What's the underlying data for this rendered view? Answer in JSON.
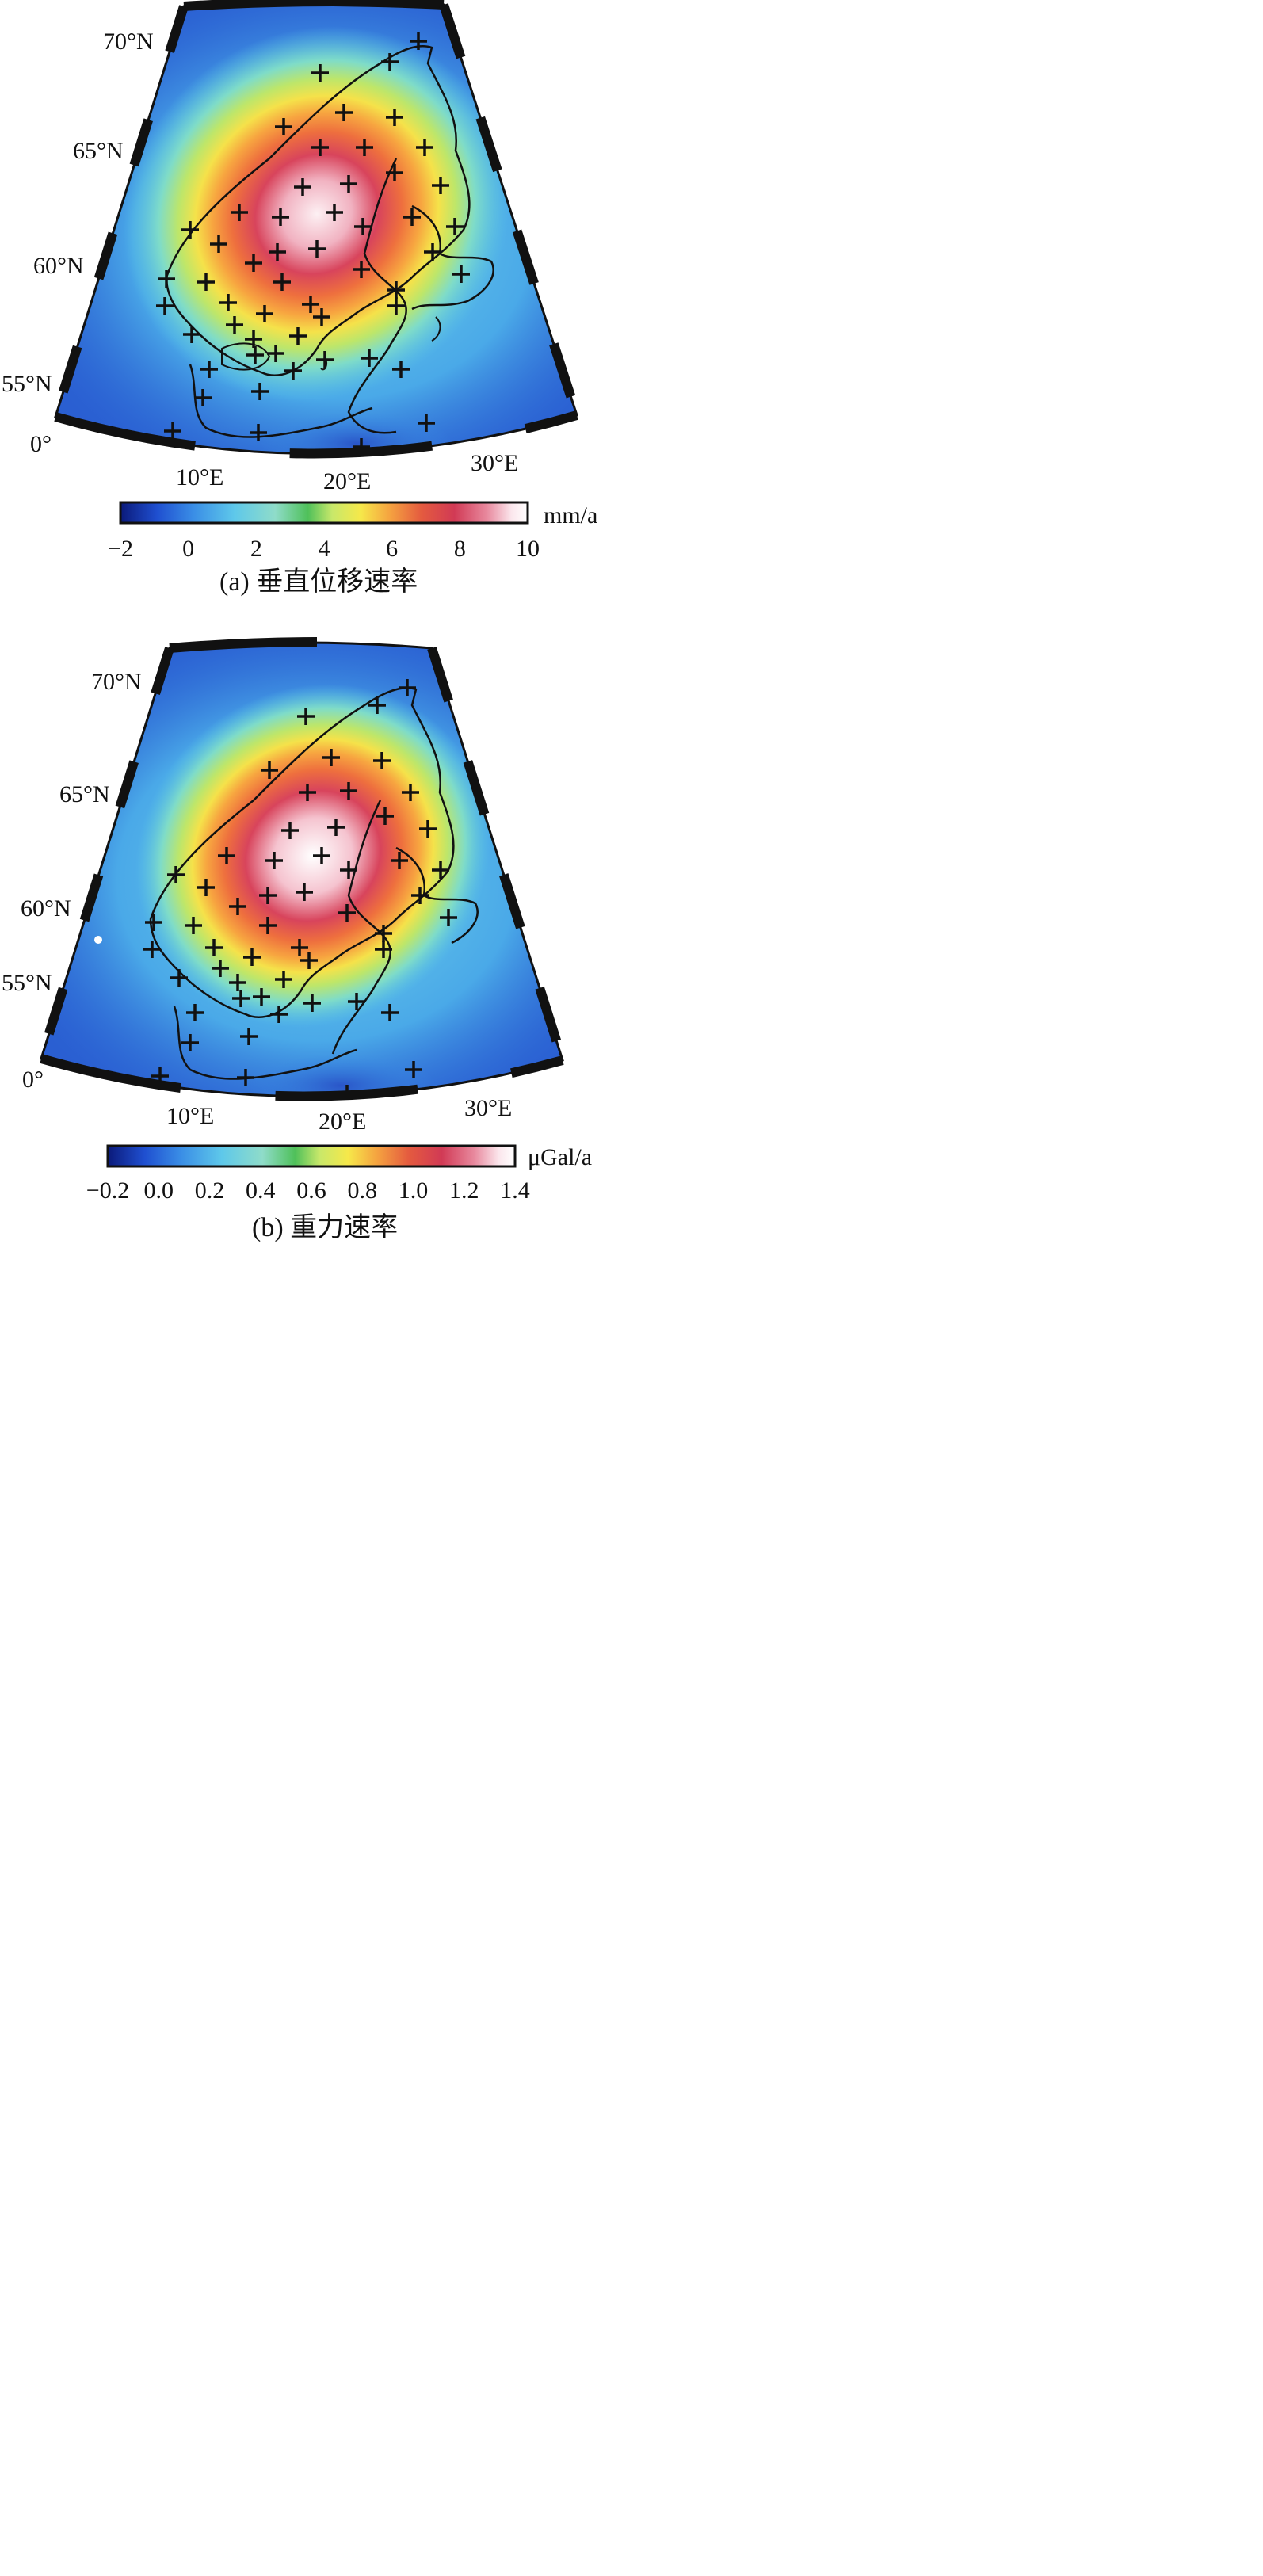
{
  "panels": [
    {
      "id": "a",
      "lat_labels": [
        "70°N",
        "65°N",
        "60°N",
        "55°N"
      ],
      "lon_labels": [
        "10°E",
        "20°E",
        "30°E"
      ],
      "origin_label": "0°",
      "colorbar": {
        "unit": "mm/a",
        "ticks": [
          "−2",
          "0",
          "2",
          "4",
          "6",
          "8",
          "10"
        ],
        "min": -2,
        "max": 10
      },
      "caption": "(a) 垂直位移速率"
    },
    {
      "id": "b",
      "lat_labels": [
        "70°N",
        "65°N",
        "60°N",
        "55°N"
      ],
      "lon_labels": [
        "10°E",
        "20°E",
        "30°E"
      ],
      "origin_label": "0°",
      "colorbar": {
        "unit": "μGal/a",
        "ticks": [
          "−0.2",
          "0.0",
          "0.2",
          "0.4",
          "0.6",
          "0.8",
          "1.0",
          "1.2",
          "1.4"
        ],
        "min": -0.2,
        "max": 1.4
      },
      "caption": "(b) 重力速率"
    }
  ],
  "colors": {
    "scale": [
      "#0b1a7a",
      "#1f4fd0",
      "#3a8ee6",
      "#5ec8ea",
      "#8fdcc9",
      "#c8e86a",
      "#f6e84a",
      "#f5a440",
      "#e45a3f",
      "#d13a55",
      "#e8899e",
      "#fbe6ec",
      "#ffffff"
    ]
  }
}
